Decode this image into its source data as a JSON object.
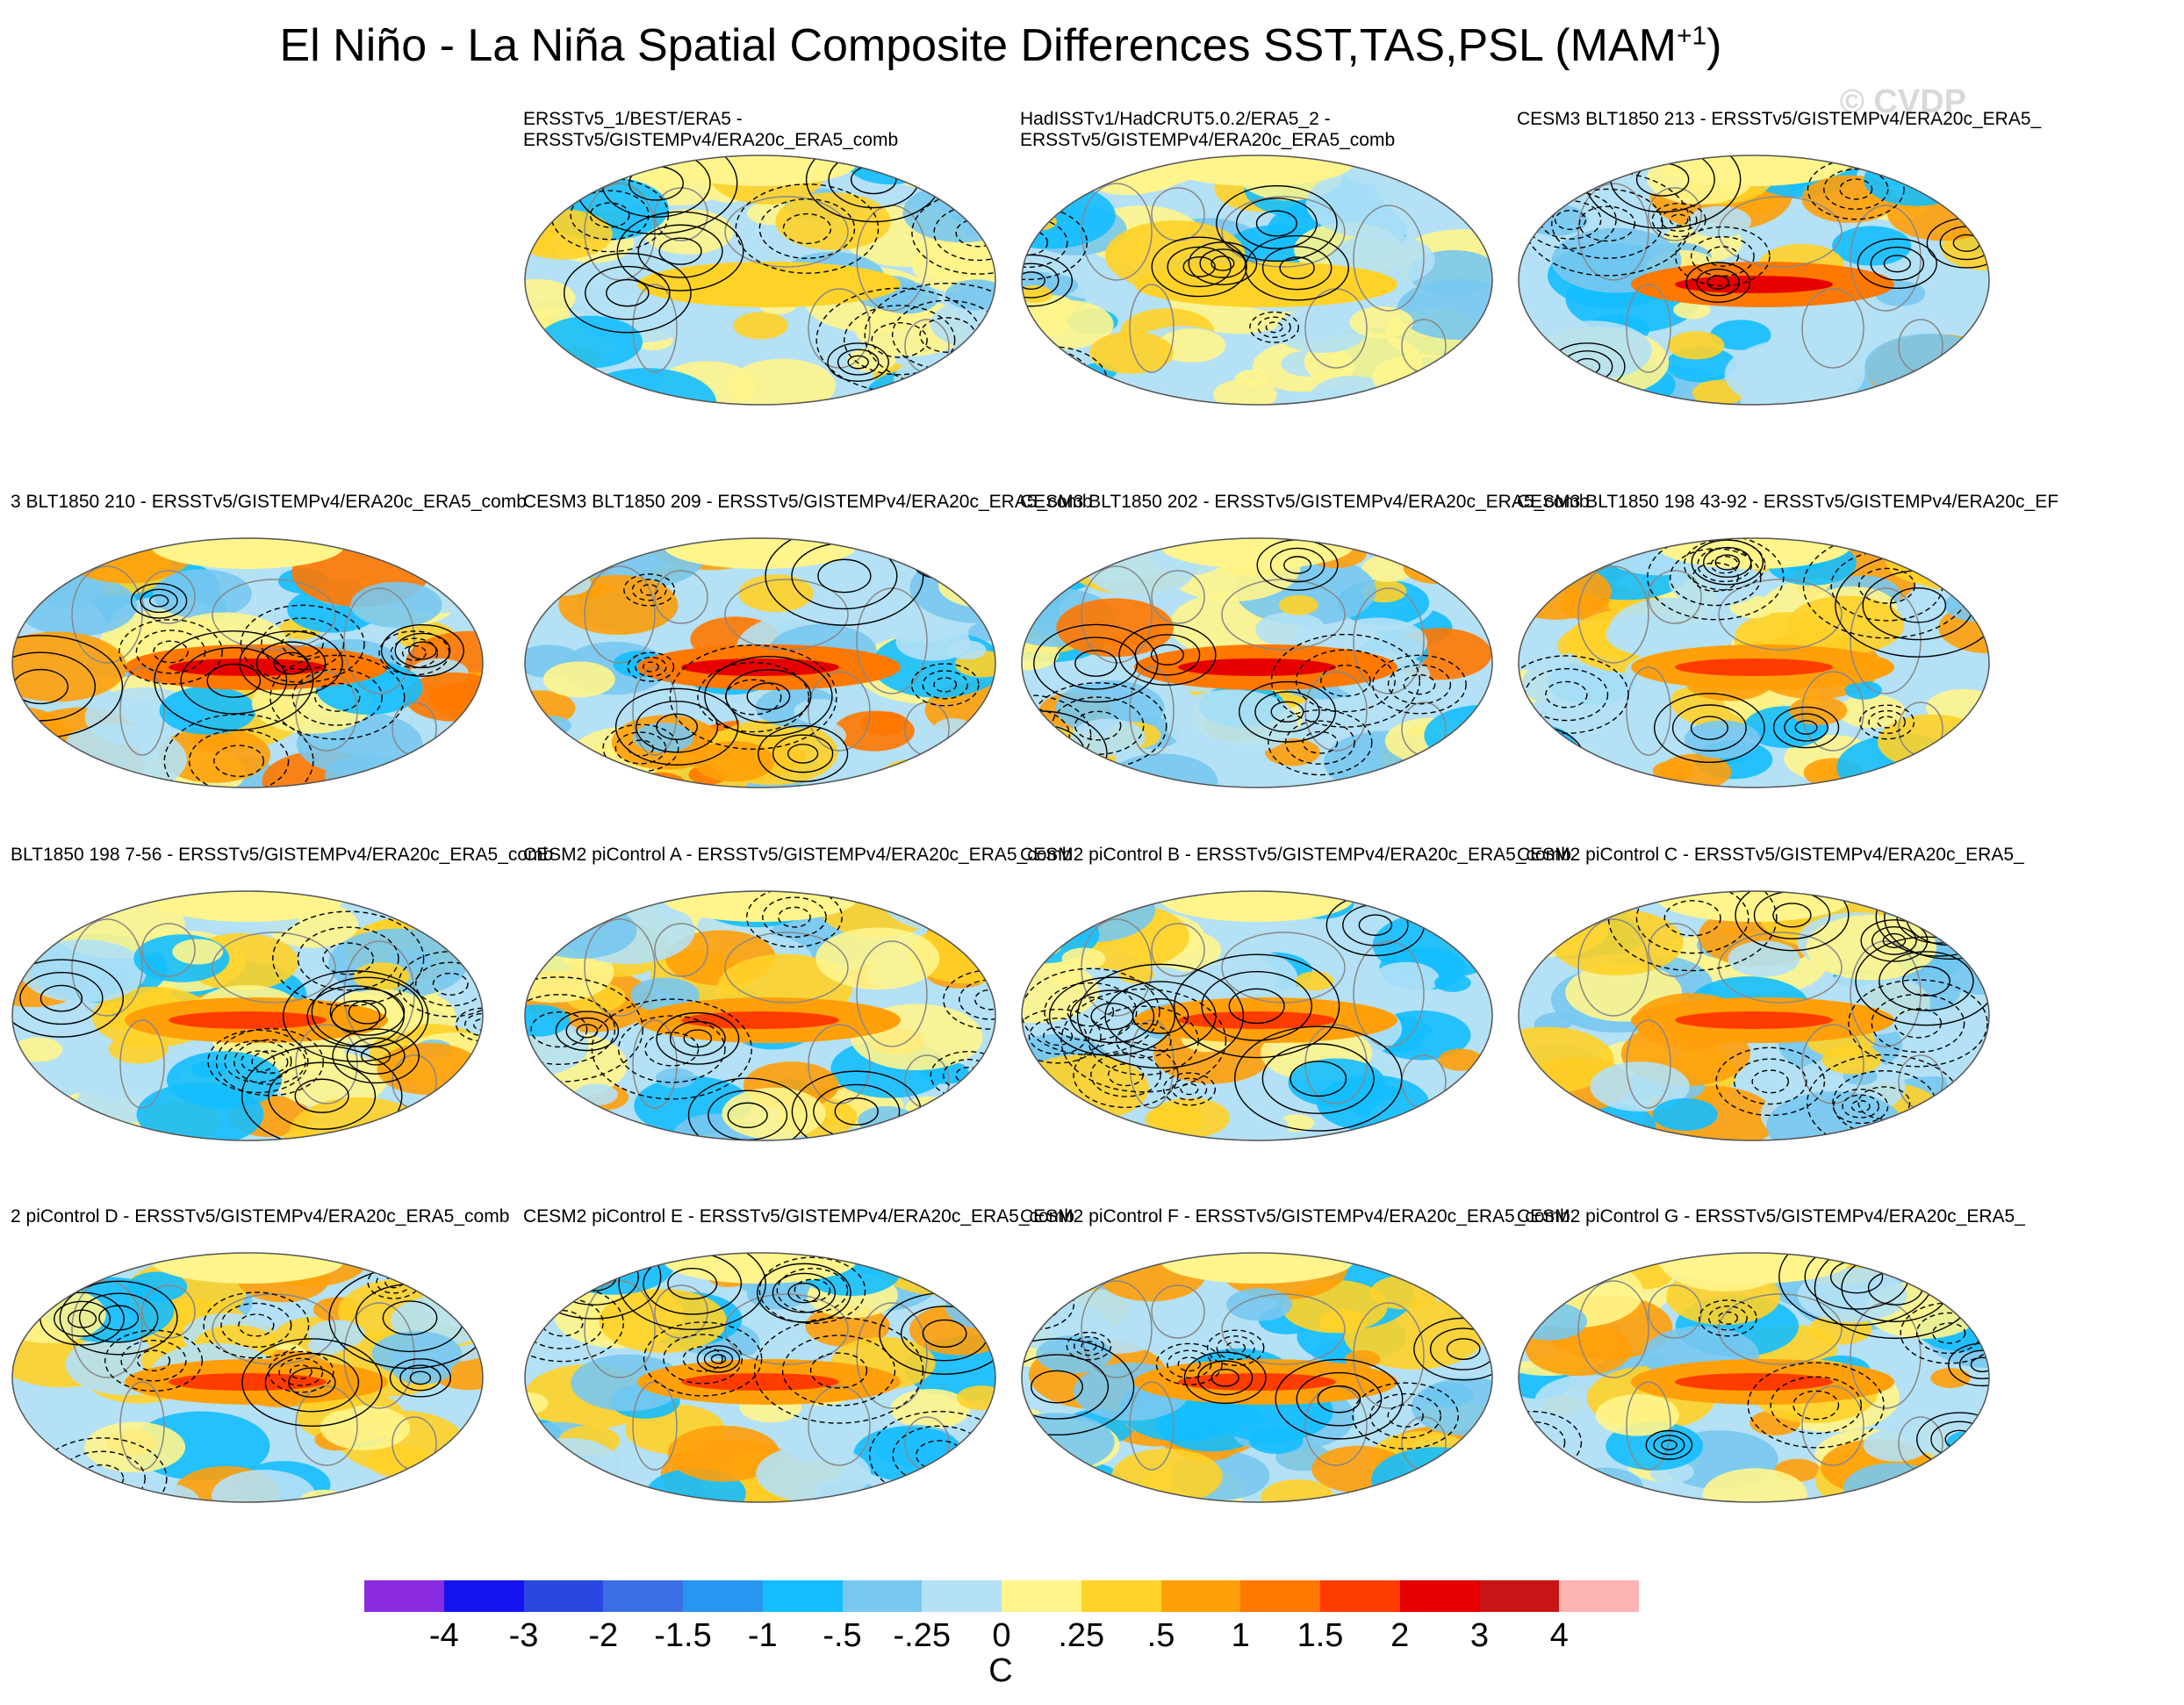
{
  "title_main": "El Niño - La Niña Spatial Composite Differences SST,TAS,PSL (MAM",
  "title_sup": "+1",
  "title_close": ")",
  "watermark": "© CVDP",
  "panels": [
    {
      "label": "ERSSTv5_1/BEST/ERA5 -\nERSSTv5/GISTEMPv4/ERA20c_ERA5_comb",
      "row": 0,
      "col": 1,
      "strength": 0.15
    },
    {
      "label": "HadISSTv1/HadCRUT5.0.2/ERA5_2 -\nERSSTv5/GISTEMPv4/ERA20c_ERA5_comb",
      "row": 0,
      "col": 2,
      "strength": 0.2
    },
    {
      "label": "CESM3 BLT1850 213 - ERSSTv5/GISTEMPv4/ERA20c_ERA5_",
      "row": 0,
      "col": 3,
      "strength": 0.75
    },
    {
      "label": "3 BLT1850 210 - ERSSTv5/GISTEMPv4/ERA20c_ERA5_comb",
      "row": 1,
      "col": 0,
      "strength": 0.9
    },
    {
      "label": "CESM3 BLT1850 209 - ERSSTv5/GISTEMPv4/ERA20c_ERA5_comb",
      "row": 1,
      "col": 1,
      "strength": 0.95
    },
    {
      "label": "CESM3 BLT1850 202 - ERSSTv5/GISTEMPv4/ERA20c_ERA5_comb",
      "row": 1,
      "col": 2,
      "strength": 0.85
    },
    {
      "label": "CESM3 BLT1850 198 43-92 - ERSSTv5/GISTEMPv4/ERA20c_EF",
      "row": 1,
      "col": 3,
      "strength": 0.5
    },
    {
      "label": "BLT1850 198 7-56 - ERSSTv5/GISTEMPv4/ERA20c_ERA5_comb",
      "row": 2,
      "col": 0,
      "strength": 0.45
    },
    {
      "label": "CESM2 piControl A - ERSSTv5/GISTEMPv4/ERA20c_ERA5_comb",
      "row": 2,
      "col": 1,
      "strength": 0.55
    },
    {
      "label": "CESM2 piControl B - ERSSTv5/GISTEMPv4/ERA20c_ERA5_comb",
      "row": 2,
      "col": 2,
      "strength": 0.6
    },
    {
      "label": "CESM2 piControl C - ERSSTv5/GISTEMPv4/ERA20c_ERA5_",
      "row": 2,
      "col": 3,
      "strength": 0.6
    },
    {
      "label": "2 piControl D - ERSSTv5/GISTEMPv4/ERA20c_ERA5_comb",
      "row": 3,
      "col": 0,
      "strength": 0.5
    },
    {
      "label": "CESM2 piControl E - ERSSTv5/GISTEMPv4/ERA20c_ERA5_comb",
      "row": 3,
      "col": 1,
      "strength": 0.55
    },
    {
      "label": "CESM2 piControl F - ERSSTv5/GISTEMPv4/ERA20c_ERA5_comb",
      "row": 3,
      "col": 2,
      "strength": 0.55
    },
    {
      "label": "CESM2 piControl G - ERSSTv5/GISTEMPv4/ERA20c_ERA5_",
      "row": 3,
      "col": 3,
      "strength": 0.5
    }
  ],
  "colorbar": {
    "colors": [
      "#8a2be2",
      "#1414f0",
      "#2848e0",
      "#3c6ee6",
      "#2896f0",
      "#14beff",
      "#78c8f0",
      "#b4e1f5",
      "#fff58c",
      "#ffd228",
      "#ffa00a",
      "#ff7800",
      "#ff3c00",
      "#e60000",
      "#c81414",
      "#ffb4b4"
    ],
    "ticks": [
      "-4",
      "-3",
      "-2",
      "-1.5",
      "-1",
      "-.5",
      "-.25",
      "0",
      ".25",
      ".5",
      "1",
      "1.5",
      "2",
      "3",
      "4"
    ],
    "unit": "C"
  }
}
